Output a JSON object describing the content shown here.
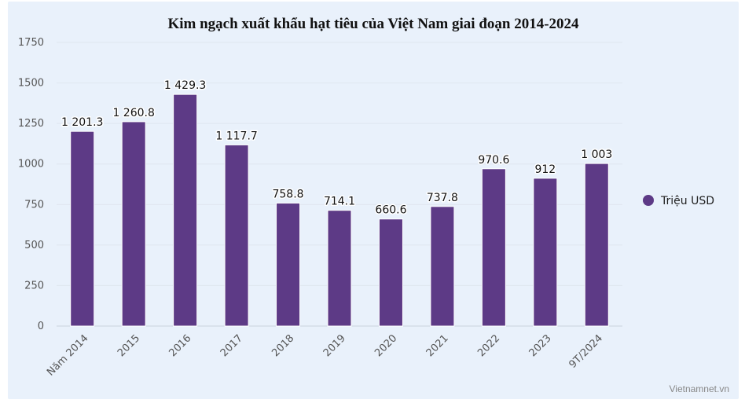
{
  "chart_data": {
    "type": "bar",
    "title": "Kim ngạch xuất khẩu hạt tiêu của Việt Nam giai đoạn 2014-2024",
    "categories": [
      "Năm 2014",
      "2015",
      "2016",
      "2017",
      "2018",
      "2019",
      "2020",
      "2021",
      "2022",
      "2023",
      "9T/2024"
    ],
    "series": [
      {
        "name": "Triệu USD",
        "values": [
          1201.3,
          1260.8,
          1429.3,
          1117.7,
          758.8,
          714.1,
          660.6,
          737.8,
          970.6,
          912,
          1003
        ],
        "labels": [
          "1 201.3",
          "1 260.8",
          "1 429.3",
          "1 117.7",
          "758.8",
          "714.1",
          "660.6",
          "737.8",
          "970.6",
          "912",
          "1 003"
        ],
        "color": "#5d3a86"
      }
    ],
    "ylim": [
      0,
      1750
    ],
    "yticks": [
      0,
      250,
      500,
      750,
      1000,
      1250,
      1500,
      1750
    ],
    "xlabel": "",
    "ylabel": "",
    "grid": true,
    "legend_position": "right"
  },
  "credit": "Vietnamnet.vn",
  "colors": {
    "bar": "#5d3a86",
    "grid": "#dfe6ef",
    "axis": "#c9d2de"
  }
}
